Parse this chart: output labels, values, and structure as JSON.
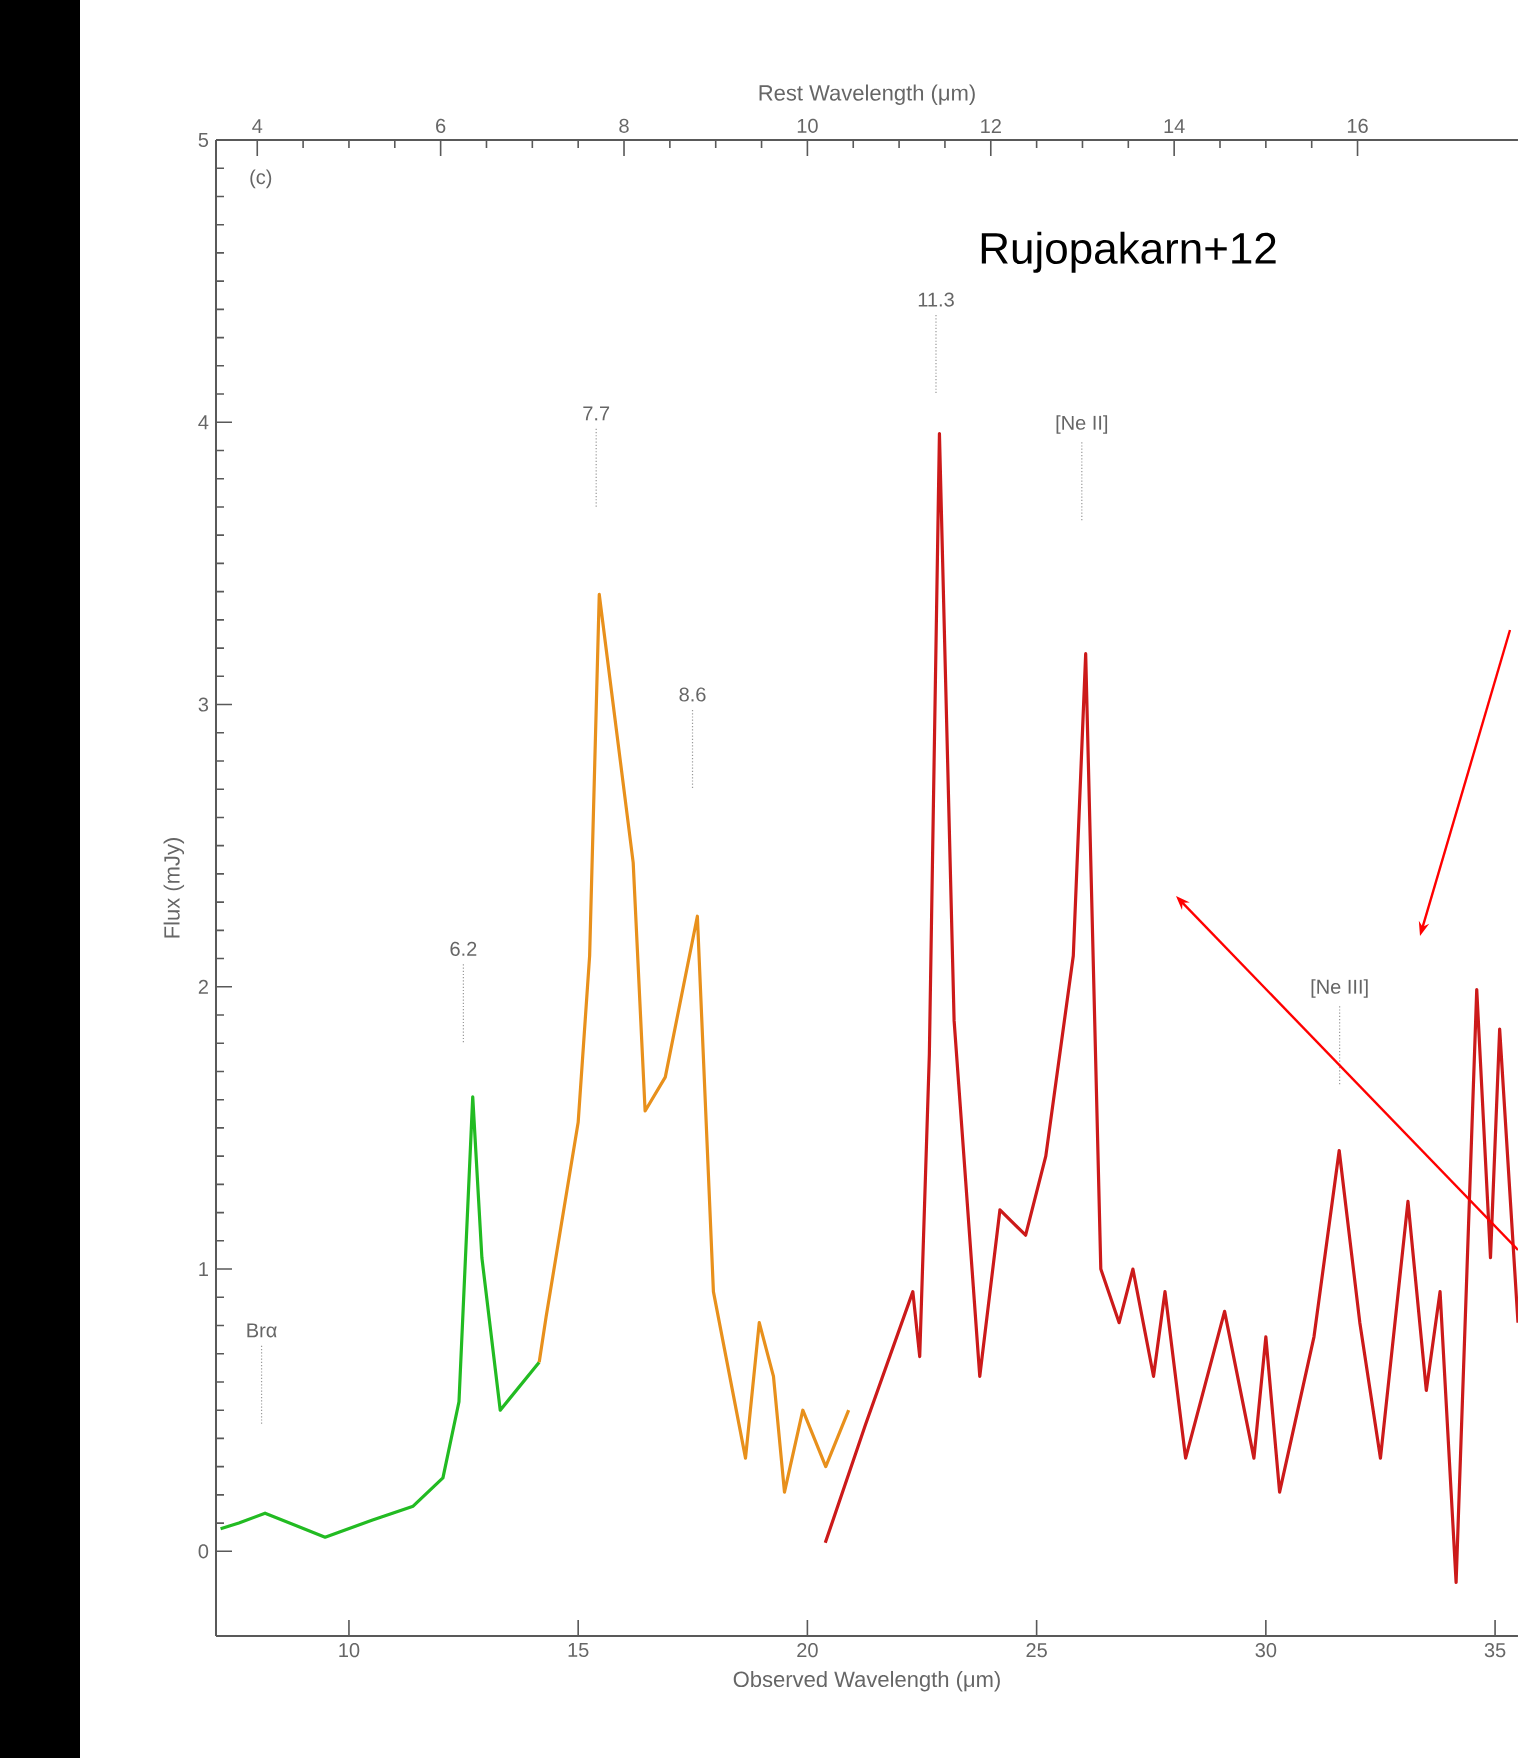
{
  "chart_data": {
    "type": "line",
    "xlabel": "Observed Wavelength (μm)",
    "ylabel": "Flux (mJy)",
    "x2label": "Rest Wavelength (μm)",
    "xlim": [
      7.1,
      35.5
    ],
    "ylim": [
      -0.3,
      5
    ],
    "x2lim": [
      3.55,
      17.75
    ],
    "xticks": [
      10,
      15,
      20,
      25,
      30,
      35
    ],
    "yticks": [
      0,
      1,
      2,
      3,
      4,
      5
    ],
    "x2ticks": [
      4,
      6,
      8,
      10,
      12,
      14,
      16
    ],
    "series": [
      {
        "color": "#22bb22",
        "x": [
          7.2,
          7.6,
          8.17,
          9.48,
          10.5,
          11.4,
          12.05,
          12.4,
          12.7,
          12.9,
          13.3,
          14.15
        ],
        "values": [
          0.08,
          0.1,
          0.135,
          0.05,
          0.11,
          0.16,
          0.26,
          0.53,
          1.61,
          1.04,
          0.5,
          0.67
        ]
      },
      {
        "color": "#e8901c",
        "x": [
          14.15,
          14.3,
          15.0,
          15.25,
          15.46,
          16.2,
          16.46,
          16.9,
          17.6,
          17.95,
          18.65,
          18.95,
          19.26,
          19.5,
          19.9,
          20.4,
          20.9
        ],
        "values": [
          0.67,
          0.83,
          1.52,
          2.11,
          3.39,
          2.44,
          1.56,
          1.68,
          2.25,
          0.92,
          0.33,
          0.81,
          0.62,
          0.21,
          0.5,
          0.3,
          0.5
        ]
      },
      {
        "color": "#cc1a1a",
        "x": [
          20.39,
          21.27,
          22.3,
          22.45,
          22.66,
          22.88,
          23.2,
          23.76,
          24.2,
          24.76,
          25.2,
          25.8,
          26.07,
          26.4,
          26.8,
          27.1,
          27.55,
          27.8,
          28.25,
          29.1,
          29.74,
          30.0,
          30.3,
          31.05,
          31.6,
          32.05,
          32.5,
          33.1,
          33.5,
          33.8,
          34.15,
          34.6,
          34.9,
          35.1,
          35.5
        ],
        "values": [
          0.03,
          0.45,
          0.92,
          0.69,
          1.76,
          3.96,
          1.88,
          0.62,
          1.21,
          1.12,
          1.4,
          2.11,
          3.18,
          1.0,
          0.81,
          1.0,
          0.62,
          0.92,
          0.33,
          0.85,
          0.33,
          0.76,
          0.21,
          0.76,
          1.42,
          0.81,
          0.33,
          1.24,
          0.57,
          0.92,
          -0.11,
          1.99,
          1.04,
          1.85,
          0.81
        ]
      }
    ],
    "annotations": [
      "(c)",
      "Rujopakarn+12",
      "Brα",
      "6.2",
      "7.7",
      "8.6",
      "11.3",
      "[Ne II]",
      "[Ne III]"
    ]
  }
}
